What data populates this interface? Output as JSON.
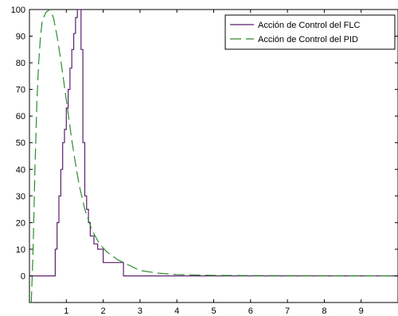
{
  "chart_data": {
    "type": "line",
    "title": "",
    "xlabel": "",
    "ylabel": "",
    "xlim": [
      0,
      10
    ],
    "ylim": [
      -10,
      100
    ],
    "xticks": [
      1,
      2,
      3,
      4,
      5,
      6,
      7,
      8,
      9
    ],
    "yticks": [
      0,
      10,
      20,
      30,
      40,
      50,
      60,
      70,
      80,
      90,
      100
    ],
    "grid": false,
    "legend_position": "top-right",
    "series": [
      {
        "name": "Acción de Control del FLC",
        "color": "#5a1f6e",
        "style": "solid",
        "step": true,
        "x": [
          0.0,
          0.55,
          0.7,
          0.75,
          0.8,
          0.85,
          0.9,
          0.95,
          1.0,
          1.05,
          1.1,
          1.15,
          1.2,
          1.25,
          1.3,
          1.35,
          1.4,
          1.45,
          1.5,
          1.55,
          1.6,
          1.65,
          1.75,
          1.85,
          2.0,
          2.5,
          2.55,
          10.0
        ],
        "y": [
          0,
          0,
          10,
          20,
          30,
          40,
          50,
          55,
          63,
          70,
          78,
          85,
          91,
          97,
          100,
          100,
          85,
          50,
          30,
          25,
          20,
          15,
          12,
          10,
          5,
          5,
          0,
          0
        ]
      },
      {
        "name": "Acción de Control del PID",
        "color": "#2e8b2e",
        "style": "dashed",
        "step": false,
        "x": [
          0.05,
          0.1,
          0.15,
          0.2,
          0.25,
          0.3,
          0.35,
          0.45,
          0.55,
          0.65,
          0.75,
          0.85,
          0.95,
          1.05,
          1.15,
          1.25,
          1.35,
          1.5,
          1.7,
          1.9,
          2.1,
          2.4,
          2.7,
          3.0,
          3.5,
          4.0,
          5.0,
          6.0,
          10.0
        ],
        "y": [
          -10,
          10,
          40,
          65,
          80,
          90,
          96,
          99,
          100,
          97,
          90,
          81,
          71,
          61,
          51,
          42,
          34,
          25,
          17,
          12,
          9,
          6,
          4,
          2,
          1,
          0.5,
          0.2,
          0.1,
          0
        ]
      }
    ]
  }
}
